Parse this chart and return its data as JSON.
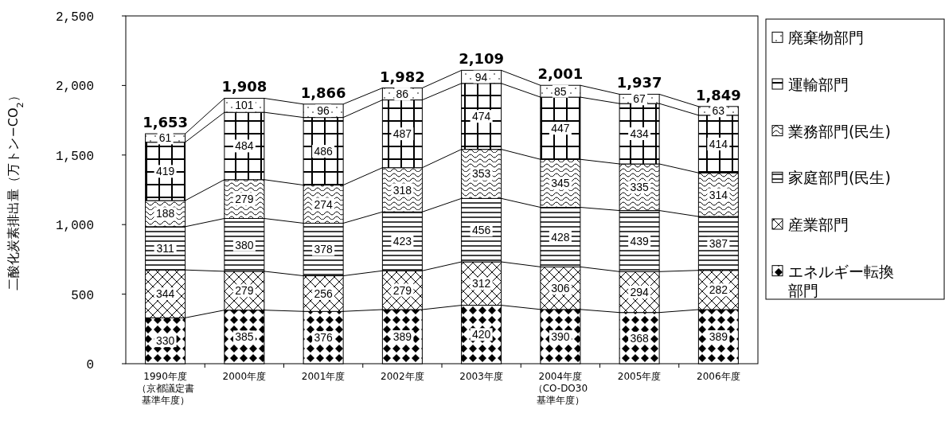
{
  "chart_data": {
    "type": "bar",
    "stacked": true,
    "ylabel": "二酸化炭素排出量（万トン−CO$_{2}$）",
    "categories": [
      "1990年度（京都議定書基準年度）",
      "2000年度",
      "2001年度",
      "2002年度",
      "2003年度",
      "2004年度（CO-DO30基準年度）",
      "2005年度",
      "2006年度"
    ],
    "series": [
      {
        "name": "エネルギー転換部門",
        "color": "#000000",
        "values": [
          330,
          385,
          376,
          389,
          420,
          390,
          368,
          389
        ]
      },
      {
        "name": "産業部門",
        "color": "#000000",
        "values": [
          344,
          279,
          256,
          279,
          312,
          306,
          294,
          282
        ]
      },
      {
        "name": "家庭部門(民生)",
        "color": "#000000",
        "values": [
          311,
          380,
          378,
          423,
          456,
          428,
          439,
          387
        ]
      },
      {
        "name": "業務部門(民生)",
        "color": "#000000",
        "values": [
          188,
          279,
          274,
          318,
          353,
          345,
          335,
          314
        ]
      },
      {
        "name": "運輸部門",
        "color": "#000000",
        "values": [
          419,
          484,
          486,
          487,
          474,
          447,
          434,
          414
        ]
      },
      {
        "name": "廃棄物部門",
        "color": "#000000",
        "values": [
          61,
          101,
          96,
          86,
          94,
          85,
          67,
          63
        ]
      }
    ],
    "totals": [
      "1,653",
      "1,908",
      "1,866",
      "1,982",
      "2,109",
      "2,001",
      "1,937",
      "1,849"
    ],
    "data_labels": true,
    "legend": "right",
    "grid": false,
    "ylim": [
      0,
      2500
    ],
    "yticks": [
      {
        "value": 0,
        "label": "0"
      },
      {
        "value": 500,
        "label": "500"
      },
      {
        "value": 1000,
        "label": "1,000"
      },
      {
        "value": 1500,
        "label": "1,500"
      },
      {
        "value": 2000,
        "label": "2,000"
      },
      {
        "value": 2500,
        "label": "2,500"
      }
    ]
  }
}
